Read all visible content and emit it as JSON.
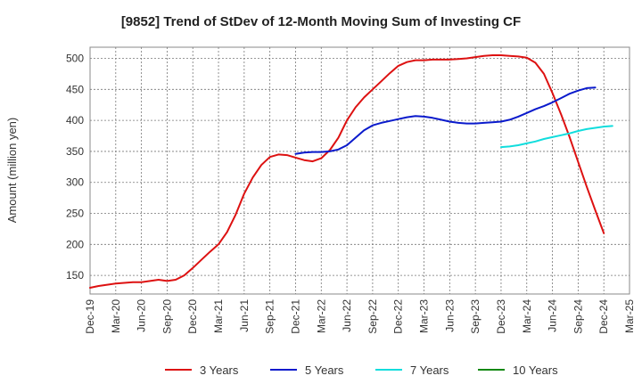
{
  "chart_data": {
    "type": "line",
    "title": "[9852]  Trend of StDev of 12-Month Moving Sum of Investing CF",
    "xlabel": "",
    "ylabel": "Amount (million yen)",
    "ylim": [
      120,
      518
    ],
    "yticks": [
      150,
      200,
      250,
      300,
      350,
      400,
      450,
      500
    ],
    "grid": true,
    "legend_position": "bottom",
    "x_tick_labels": [
      "Dec-19",
      "Mar-20",
      "Jun-20",
      "Sep-20",
      "Dec-20",
      "Mar-21",
      "Jun-21",
      "Sep-21",
      "Dec-21",
      "Mar-22",
      "Jun-22",
      "Sep-22",
      "Dec-22",
      "Mar-23",
      "Jun-23",
      "Sep-23",
      "Dec-23",
      "Mar-24",
      "Jun-24",
      "Sep-24",
      "Dec-24",
      "Mar-25"
    ],
    "series": [
      {
        "name": "3 Years",
        "color": "#dd1111",
        "start_index": 0,
        "values": [
          130,
          133,
          135,
          137,
          138,
          139,
          139,
          141,
          143,
          141,
          143,
          150,
          162,
          175,
          188,
          200,
          220,
          248,
          282,
          308,
          328,
          341,
          345,
          344,
          340,
          336,
          334,
          339,
          352,
          372,
          400,
          421,
          437,
          450,
          463,
          476,
          488,
          494,
          497,
          497,
          498,
          498,
          498,
          499,
          500,
          502,
          504,
          505,
          505,
          504,
          503,
          501,
          493,
          475,
          444,
          410,
          373,
          333,
          293,
          255,
          218
        ]
      },
      {
        "name": "5 Years",
        "color": "#0a1acc",
        "start_index": 24,
        "values": [
          346,
          348,
          349,
          349,
          350,
          353,
          360,
          372,
          384,
          392,
          396,
          399,
          402,
          405,
          407,
          406,
          404,
          401,
          398,
          396,
          395,
          395,
          396,
          397,
          398,
          401,
          406,
          412,
          418,
          423,
          429,
          436,
          443,
          448,
          452,
          453
        ]
      },
      {
        "name": "7 Years",
        "color": "#11dddd",
        "start_index": 48,
        "values": [
          357,
          358,
          360,
          363,
          366,
          370,
          373,
          376,
          379,
          383,
          386,
          388,
          390,
          391
        ]
      },
      {
        "name": "10 Years",
        "color": "#118811",
        "start_index": null,
        "values": []
      }
    ]
  }
}
